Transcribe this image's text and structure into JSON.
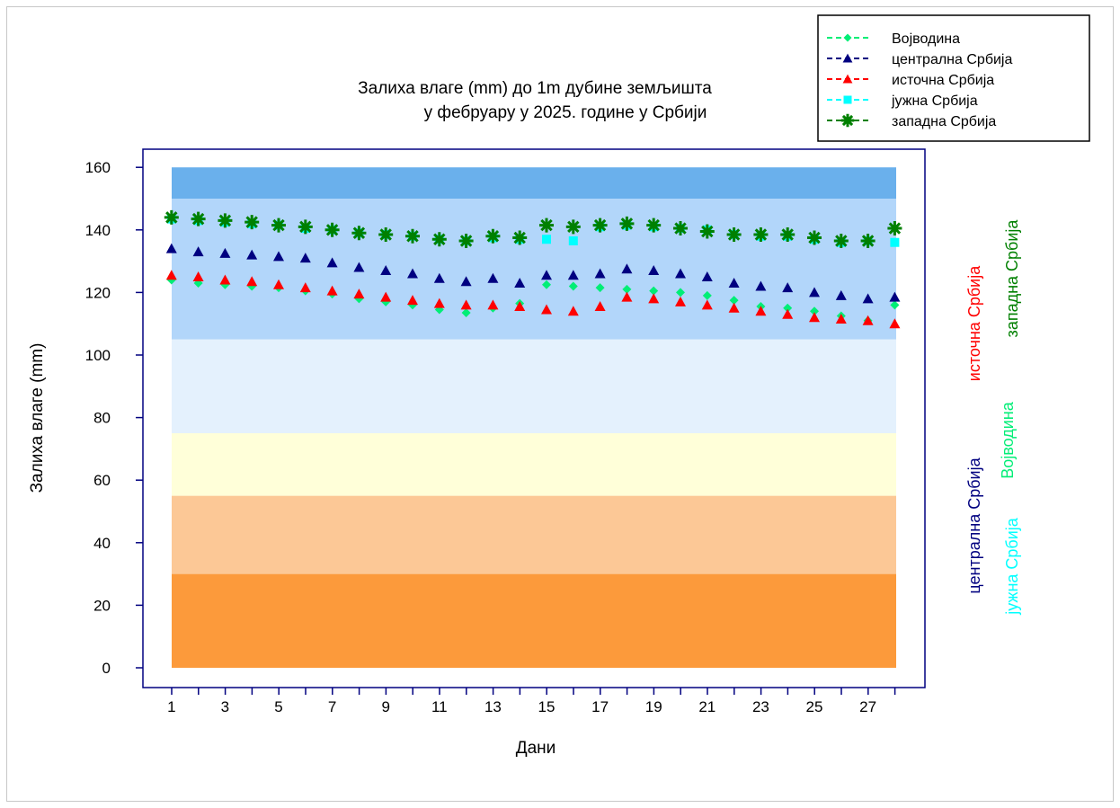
{
  "chart_data": {
    "type": "scatter",
    "title_lines": [
      "Залиха влаге (mm) до 1m дубине земљишта",
      "у фебруару у 2025. године у Србији"
    ],
    "xlabel": "Дани",
    "ylabel": "Залиха влаге (mm)",
    "xlim": [
      0,
      29
    ],
    "ylim": [
      -5,
      170
    ],
    "x_ticks": [
      1,
      3,
      5,
      7,
      9,
      11,
      13,
      15,
      17,
      19,
      21,
      23,
      25,
      27
    ],
    "y_ticks": [
      0,
      20,
      40,
      60,
      80,
      100,
      120,
      140,
      160
    ],
    "background_bands": [
      {
        "from": 0,
        "to": 30,
        "color": "#fc9a3b"
      },
      {
        "from": 30,
        "to": 55,
        "color": "#fcc896"
      },
      {
        "from": 55,
        "to": 75,
        "color": "#ffffd9"
      },
      {
        "from": 75,
        "to": 105,
        "color": "#e4f1fd"
      },
      {
        "from": 105,
        "to": 150,
        "color": "#b2d6fa"
      },
      {
        "from": 150,
        "to": 160,
        "color": "#6ab0ec"
      }
    ],
    "x": [
      1,
      2,
      3,
      4,
      5,
      6,
      7,
      8,
      9,
      10,
      11,
      12,
      13,
      14,
      15,
      16,
      17,
      18,
      19,
      20,
      21,
      22,
      23,
      24,
      25,
      26,
      27,
      28
    ],
    "series": [
      {
        "name": "Војводина",
        "color": "#00ee76",
        "marker": "diamond",
        "values": [
          124,
          123,
          122.5,
          122,
          121.5,
          120.5,
          119.5,
          118,
          117,
          116,
          114.5,
          113.5,
          115,
          116.5,
          122.5,
          122,
          121.5,
          121,
          120.5,
          120,
          119,
          117.5,
          115.5,
          115,
          114,
          112.5,
          111,
          116
        ]
      },
      {
        "name": "централна Србија",
        "color": "#000080",
        "marker": "triangle",
        "values": [
          134,
          133,
          132.5,
          132,
          131.5,
          131,
          129.5,
          128,
          127,
          126,
          124.5,
          123.5,
          124.5,
          123,
          125.5,
          125.5,
          126,
          127.5,
          127,
          126,
          125,
          123,
          122,
          121.5,
          120,
          119,
          118,
          118.5
        ]
      },
      {
        "name": "источна Србија",
        "color": "#ff0000",
        "marker": "triangle",
        "values": [
          125.5,
          125,
          124,
          123.5,
          122.5,
          121.5,
          120.5,
          119.5,
          118.5,
          117.5,
          116.5,
          116,
          116,
          115.5,
          114.5,
          114,
          115.5,
          118.5,
          118,
          117,
          116,
          115,
          114,
          113,
          112,
          111.5,
          111,
          110
        ]
      },
      {
        "name": "јужна Србија",
        "color": "#00ffff",
        "marker": "square",
        "values": [
          143.5,
          143,
          142.5,
          142,
          141.5,
          140.5,
          140,
          139,
          138.5,
          138,
          137,
          136.5,
          137.5,
          137,
          137,
          136.5,
          141,
          141.5,
          141,
          140.5,
          140,
          138.5,
          138,
          138,
          137,
          136,
          136.5,
          136
        ]
      },
      {
        "name": "западна Србија",
        "color": "#008000",
        "marker": "star",
        "values": [
          144,
          143.5,
          143,
          142.5,
          141.5,
          141,
          140,
          139,
          138.5,
          138,
          137,
          136.5,
          138,
          137.5,
          141.5,
          141,
          141.5,
          142,
          141.5,
          140.5,
          139.5,
          138.5,
          138.5,
          138.5,
          137.5,
          136.5,
          136.5,
          140.5
        ]
      }
    ],
    "legend_position": "top-right",
    "side_labels": [
      {
        "text": "источна Србија",
        "color": "#ff0000"
      },
      {
        "text": "западна Србија",
        "color": "#008000"
      },
      {
        "text": "централна Србија",
        "color": "#000080"
      },
      {
        "text": "Војводина",
        "color": "#00ee76"
      },
      {
        "text": "јужна Србија",
        "color": "#00ffff"
      }
    ],
    "grid": false
  }
}
